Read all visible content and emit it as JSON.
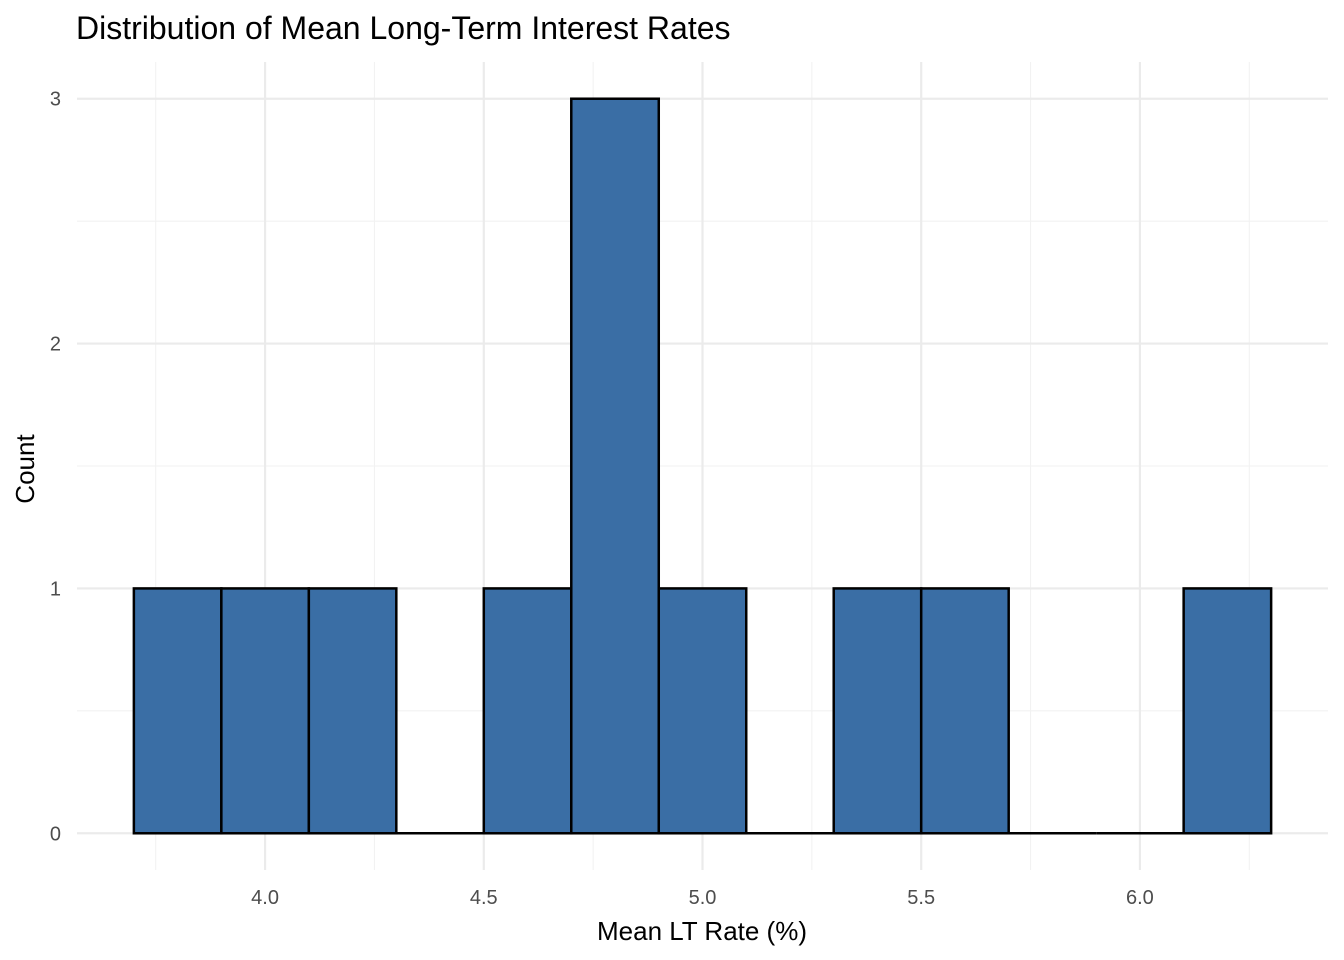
{
  "chart_data": {
    "type": "bar",
    "subtype": "histogram",
    "title": "Distribution of Mean Long-Term Interest Rates",
    "xlabel": "Mean LT Rate (%)",
    "ylabel": "Count",
    "bin_width": 0.2,
    "bins": [
      {
        "start": 3.7,
        "end": 3.9,
        "count": 1
      },
      {
        "start": 3.9,
        "end": 4.1,
        "count": 1
      },
      {
        "start": 4.1,
        "end": 4.3,
        "count": 1
      },
      {
        "start": 4.3,
        "end": 4.5,
        "count": 0
      },
      {
        "start": 4.5,
        "end": 4.7,
        "count": 1
      },
      {
        "start": 4.7,
        "end": 4.9,
        "count": 3
      },
      {
        "start": 4.9,
        "end": 5.1,
        "count": 1
      },
      {
        "start": 5.1,
        "end": 5.3,
        "count": 0
      },
      {
        "start": 5.3,
        "end": 5.5,
        "count": 1
      },
      {
        "start": 5.5,
        "end": 5.7,
        "count": 1
      },
      {
        "start": 5.7,
        "end": 5.9,
        "count": 0
      },
      {
        "start": 5.9,
        "end": 6.1,
        "count": 0
      },
      {
        "start": 6.1,
        "end": 6.3,
        "count": 1
      }
    ],
    "xlim": [
      3.57,
      6.43
    ],
    "ylim": [
      -0.15,
      3.15
    ],
    "x_ticks": [
      4.0,
      4.5,
      5.0,
      5.5,
      6.0
    ],
    "x_tick_labels": [
      "4.0",
      "4.5",
      "5.0",
      "5.5",
      "6.0"
    ],
    "y_ticks": [
      0,
      1,
      2,
      3
    ],
    "y_tick_labels": [
      "0",
      "1",
      "2",
      "3"
    ],
    "grid": true,
    "legend": "none",
    "colors": {
      "bar_fill": "#3a6ea5",
      "bar_stroke": "#000000",
      "grid_major": "#ebebeb",
      "grid_minor": "#f2f2f2",
      "tick_text": "#4d4d4d"
    }
  }
}
